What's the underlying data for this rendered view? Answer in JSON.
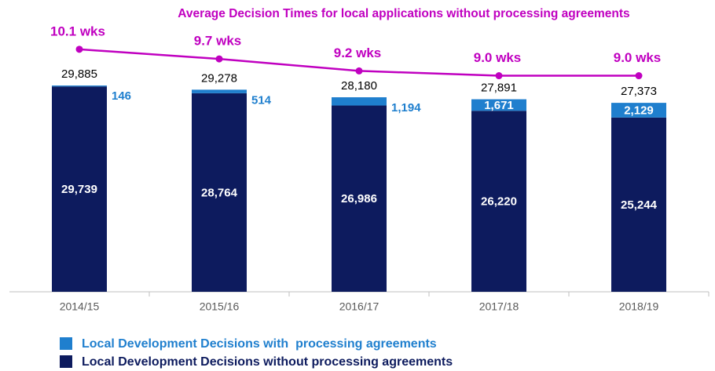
{
  "chart_data": {
    "type": "bar",
    "annotation": "Average Decision Times for local applications without processing agreements",
    "categories": [
      "2014/15",
      "2015/16",
      "2016/17",
      "2017/18",
      "2018/19"
    ],
    "stacked": true,
    "ylim": [
      0,
      40000
    ],
    "y2lim": [
      0,
      11.5
    ],
    "series": [
      {
        "name": "Local Development Decisions without processing agreements",
        "color": "#0d1b5e",
        "values": [
          29739,
          28764,
          26986,
          26220,
          25244
        ],
        "value_labels": [
          "29,739",
          "28,764",
          "26,986",
          "26,220",
          "25,244"
        ]
      },
      {
        "name": "Local Development Decisions with  processing agreements",
        "color": "#1f7fce",
        "values": [
          146,
          514,
          1194,
          1671,
          2129
        ],
        "value_labels": [
          "146",
          "514",
          "1,194",
          "1,671",
          "2,129"
        ]
      },
      {
        "name": "Average decision time",
        "type": "line",
        "axis": "y2",
        "color": "#c000c0",
        "values": [
          10.1,
          9.7,
          9.2,
          9.0,
          9.0
        ],
        "value_labels": [
          "10.1 wks",
          "9.7 wks",
          "9.2 wks",
          "9.0 wks",
          "9.0 wks"
        ]
      }
    ],
    "total_labels": [
      "29,885",
      "29,278",
      "28,180",
      "27,891",
      "27,373"
    ]
  }
}
